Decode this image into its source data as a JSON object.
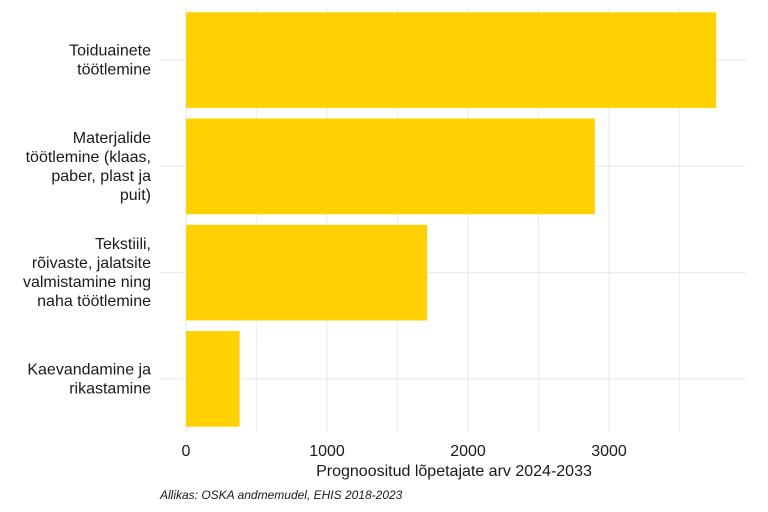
{
  "chart_data": {
    "type": "bar",
    "orientation": "horizontal",
    "categories": [
      [
        "Toiduainete",
        "töötlemine"
      ],
      [
        "Materjalide",
        "töötlemine (klaas,",
        "paber, plast ja",
        "puit)"
      ],
      [
        "Tekstiili,",
        "rõivaste, jalatsite",
        "valmistamine ning",
        "naha töötlemine"
      ],
      [
        "Kaevandamine ja",
        "rikastamine"
      ]
    ],
    "values": [
      3760,
      2900,
      1710,
      380
    ],
    "xlabel": "Prognoositud lõpetajate arv 2024-2033",
    "ylabel": "",
    "xlim": [
      0,
      3950
    ],
    "xticks": [
      0,
      1000,
      2000,
      3000
    ],
    "xtick_labels": [
      "0",
      "1000",
      "2000",
      "3000"
    ],
    "grid": true,
    "legend": "none",
    "bar_color": "#FFD100",
    "grid_color": "#EBEBEB"
  },
  "caption": "Allikas: OSKA andmemudel, EHIS 2018-2023"
}
